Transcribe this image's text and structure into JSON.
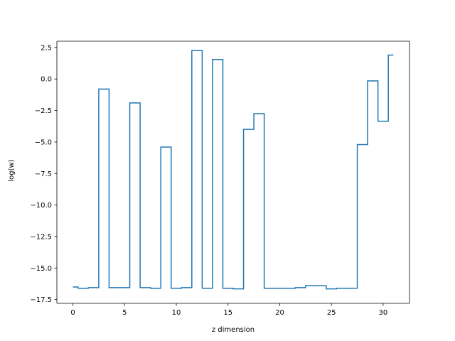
{
  "chart_data": {
    "type": "line",
    "drawstyle": "steps-mid",
    "title": "",
    "xlabel": "z dimension",
    "ylabel": "log(w)",
    "xlim": [
      -1.55,
      32.55
    ],
    "ylim": [
      -17.8,
      3.0
    ],
    "grid": false,
    "line_color": "#1f77b4",
    "xticks": [
      0,
      5,
      10,
      15,
      20,
      25,
      30
    ],
    "yticks": [
      -17.5,
      -15.0,
      -12.5,
      -10.0,
      -7.5,
      -5.0,
      -2.5,
      0.0,
      2.5
    ],
    "xtick_labels": [
      "0",
      "5",
      "10",
      "15",
      "20",
      "25",
      "30"
    ],
    "ytick_labels": [
      "−17.5",
      "−15.0",
      "−12.5",
      "−10.0",
      "−7.5",
      "−5.0",
      "−2.5",
      "0.0",
      "2.5"
    ],
    "series": [
      {
        "x": [
          0,
          1,
          2,
          3,
          4,
          5,
          6,
          7,
          8,
          9,
          10,
          11,
          12,
          13,
          14,
          15,
          16,
          17,
          18,
          19,
          20,
          21,
          22,
          23,
          24,
          25,
          26,
          27,
          28,
          29,
          30,
          31
        ],
        "y": [
          -16.5,
          -16.6,
          -16.55,
          -0.8,
          -16.55,
          -16.55,
          -1.9,
          -16.55,
          -16.6,
          -5.4,
          -16.6,
          -16.55,
          2.25,
          -16.6,
          1.55,
          -16.6,
          -16.65,
          -4.0,
          -2.75,
          -16.6,
          -16.6,
          -16.6,
          -16.55,
          -16.4,
          -16.4,
          -16.65,
          -16.6,
          -16.6,
          -5.2,
          -0.15,
          -3.35,
          1.9
        ]
      }
    ]
  }
}
